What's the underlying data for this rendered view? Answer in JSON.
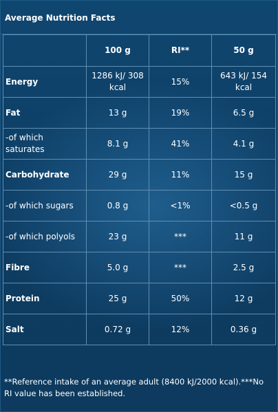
{
  "title": "Average Nutrition Facts",
  "columns": [
    "",
    "100 g",
    "RI**",
    "50 g"
  ],
  "rows": [
    {
      "label": "Energy",
      "bold": true,
      "per100": "1286 kJ/ 308 kcal",
      "ri": "15%",
      "per50": "643 kJ/ 154 kcal"
    },
    {
      "label": "Fat",
      "bold": true,
      "per100": "13 g",
      "ri": "19%",
      "per50": "6.5 g"
    },
    {
      "label": "-of which saturates",
      "bold": false,
      "per100": "8.1 g",
      "ri": "41%",
      "per50": "4.1 g"
    },
    {
      "label": "Carbohydrate",
      "bold": true,
      "per100": "29 g",
      "ri": "11%",
      "per50": "15 g"
    },
    {
      "label": "-of which sugars",
      "bold": false,
      "per100": "0.8 g",
      "ri": "<1%",
      "per50": "<0.5 g"
    },
    {
      "label": "-of which polyols",
      "bold": false,
      "per100": "23 g",
      "ri": "***",
      "per50": "11 g"
    },
    {
      "label": "Fibre",
      "bold": true,
      "per100": "5.0 g",
      "ri": "***",
      "per50": "2.5 g"
    },
    {
      "label": "Protein",
      "bold": true,
      "per100": "25 g",
      "ri": "50%",
      "per50": "12 g"
    },
    {
      "label": "Salt",
      "bold": true,
      "per100": "0.72 g",
      "ri": "12%",
      "per50": "0.36 g"
    }
  ],
  "footnote": "**Reference intake of an average adult (8400 kJ/2000 kcal).***No RI value has been established.",
  "colors": {
    "background": "#0f3f66",
    "grid": "#5f8fb3",
    "text": "#ffffff"
  }
}
